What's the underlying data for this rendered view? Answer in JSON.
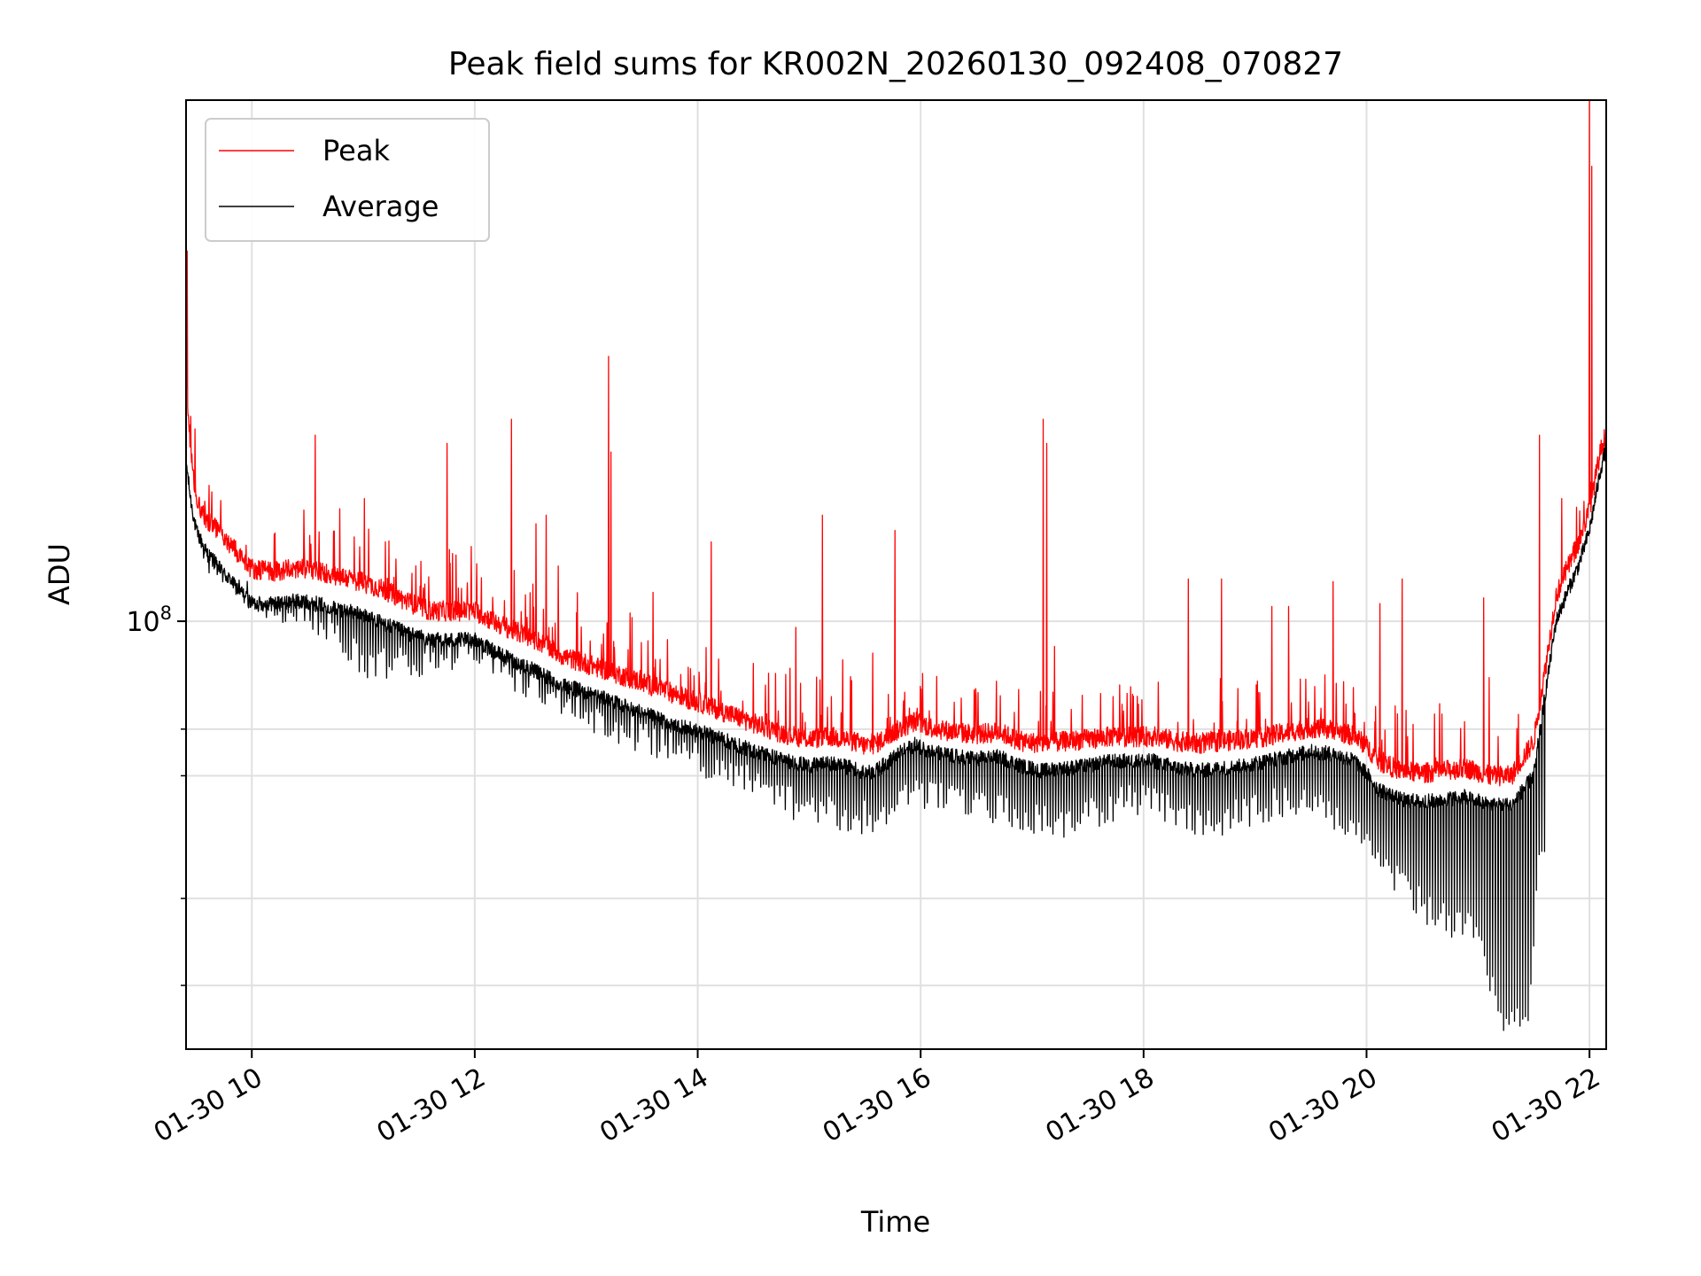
{
  "chart_data": {
    "type": "line",
    "title": "Peak field sums for KR002N_20260130_092408_070827",
    "xlabel": "Time",
    "ylabel": "ADU",
    "yscale": "log",
    "ylim": [
      24300000.0,
      560000000.0
    ],
    "xlim": [
      9.41,
      22.15
    ],
    "grid": true,
    "x_ticks": [
      {
        "value": 10,
        "label": "01-30 10"
      },
      {
        "value": 12,
        "label": "01-30 12"
      },
      {
        "value": 14,
        "label": "01-30 14"
      },
      {
        "value": 16,
        "label": "01-30 16"
      },
      {
        "value": 18,
        "label": "01-30 18"
      },
      {
        "value": 20,
        "label": "01-30 20"
      },
      {
        "value": 22,
        "label": "01-30 22"
      }
    ],
    "y_major_ticks": [
      {
        "value": 100000000.0,
        "base": "10",
        "exp": "8"
      }
    ],
    "y_minor_ticks": [
      30000000.0,
      40000000.0,
      60000000.0,
      70000000.0
    ],
    "legend": {
      "placement": "upper-left"
    },
    "series": [
      {
        "name": "Peak",
        "color": "#ff0000",
        "points": [
          [
            9.41,
            220000000.0
          ],
          [
            9.45,
            170000000.0
          ],
          [
            9.5,
            145000000.0
          ],
          [
            9.6,
            135000000.0
          ],
          [
            9.75,
            128000000.0
          ],
          [
            9.9,
            120000000.0
          ],
          [
            10.0,
            115000000.0
          ],
          [
            10.2,
            114000000.0
          ],
          [
            10.4,
            115000000.0
          ],
          [
            10.6,
            114000000.0
          ],
          [
            10.8,
            112000000.0
          ],
          [
            11.0,
            110000000.0
          ],
          [
            11.2,
            107000000.0
          ],
          [
            11.4,
            103000000.0
          ],
          [
            11.6,
            100000000.0
          ],
          [
            11.8,
            100000000.0
          ],
          [
            12.0,
            100000000.0
          ],
          [
            12.2,
            96000000.0
          ],
          [
            12.4,
            93000000.0
          ],
          [
            12.6,
            90000000.0
          ],
          [
            12.8,
            86000000.0
          ],
          [
            13.0,
            84000000.0
          ],
          [
            13.2,
            82000000.0
          ],
          [
            13.4,
            80000000.0
          ],
          [
            13.6,
            78000000.0
          ],
          [
            13.8,
            76000000.0
          ],
          [
            14.0,
            74000000.0
          ],
          [
            14.2,
            72000000.0
          ],
          [
            14.4,
            70000000.0
          ],
          [
            14.6,
            68000000.0
          ],
          [
            14.8,
            66500000.0
          ],
          [
            15.0,
            65500000.0
          ],
          [
            15.2,
            66000000.0
          ],
          [
            15.4,
            65000000.0
          ],
          [
            15.5,
            64000000.0
          ],
          [
            15.6,
            64500000.0
          ],
          [
            15.8,
            67500000.0
          ],
          [
            15.95,
            69500000.0
          ],
          [
            16.1,
            68000000.0
          ],
          [
            16.3,
            67000000.0
          ],
          [
            16.5,
            66500000.0
          ],
          [
            16.7,
            67000000.0
          ],
          [
            16.9,
            65000000.0
          ],
          [
            17.1,
            64500000.0
          ],
          [
            17.3,
            65000000.0
          ],
          [
            17.5,
            65500000.0
          ],
          [
            17.7,
            66000000.0
          ],
          [
            17.9,
            66000000.0
          ],
          [
            18.1,
            66000000.0
          ],
          [
            18.3,
            65000000.0
          ],
          [
            18.5,
            64500000.0
          ],
          [
            18.7,
            65000000.0
          ],
          [
            18.9,
            65500000.0
          ],
          [
            19.1,
            66000000.0
          ],
          [
            19.3,
            67000000.0
          ],
          [
            19.5,
            68000000.0
          ],
          [
            19.7,
            67500000.0
          ],
          [
            19.9,
            66000000.0
          ],
          [
            20.0,
            64000000.0
          ],
          [
            20.1,
            61000000.0
          ],
          [
            20.3,
            59000000.0
          ],
          [
            20.5,
            58500000.0
          ],
          [
            20.7,
            59000000.0
          ],
          [
            20.9,
            59500000.0
          ],
          [
            21.1,
            58000000.0
          ],
          [
            21.3,
            58000000.0
          ],
          [
            21.5,
            65000000.0
          ],
          [
            21.6,
            82000000.0
          ],
          [
            21.7,
            105000000.0
          ],
          [
            21.8,
            115000000.0
          ],
          [
            21.9,
            125000000.0
          ],
          [
            22.0,
            140000000.0
          ],
          [
            22.1,
            170000000.0
          ],
          [
            22.15,
            180000000.0
          ]
        ],
        "spikes": [
          [
            9.42,
            340000000.0
          ],
          [
            10.57,
            185000000.0
          ],
          [
            10.79,
            145000000.0
          ],
          [
            11.01,
            150000000.0
          ],
          [
            11.2,
            130000000.0
          ],
          [
            11.75,
            180000000.0
          ],
          [
            11.97,
            128000000.0
          ],
          [
            12.33,
            195000000.0
          ],
          [
            12.55,
            138000000.0
          ],
          [
            12.64,
            142000000.0
          ],
          [
            12.75,
            120000000.0
          ],
          [
            13.2,
            240000000.0
          ],
          [
            13.22,
            175000000.0
          ],
          [
            13.6,
            110000000.0
          ],
          [
            14.12,
            130000000.0
          ],
          [
            14.5,
            87000000.0
          ],
          [
            14.88,
            98000000.0
          ],
          [
            15.12,
            142000000.0
          ],
          [
            15.3,
            88000000.0
          ],
          [
            15.57,
            90000000.0
          ],
          [
            15.77,
            135000000.0
          ],
          [
            16.68,
            82000000.0
          ],
          [
            17.1,
            195000000.0
          ],
          [
            17.13,
            180000000.0
          ],
          [
            17.2,
            92000000.0
          ],
          [
            18.4,
            115000000.0
          ],
          [
            18.7,
            115000000.0
          ],
          [
            19.15,
            105000000.0
          ],
          [
            19.3,
            105000000.0
          ],
          [
            19.7,
            114000000.0
          ],
          [
            20.12,
            106000000.0
          ],
          [
            20.32,
            115000000.0
          ],
          [
            21.05,
            108000000.0
          ],
          [
            21.1,
            83000000.0
          ],
          [
            21.55,
            185000000.0
          ],
          [
            21.75,
            150000000.0
          ],
          [
            22.0,
            560000000.0
          ],
          [
            22.02,
            450000000.0
          ]
        ]
      },
      {
        "name": "Average",
        "color": "#000000",
        "points": [
          [
            9.41,
            170000000.0
          ],
          [
            9.45,
            150000000.0
          ],
          [
            9.5,
            135000000.0
          ],
          [
            9.6,
            125000000.0
          ],
          [
            9.75,
            117000000.0
          ],
          [
            9.9,
            110000000.0
          ],
          [
            10.0,
            106000000.0
          ],
          [
            10.2,
            106000000.0
          ],
          [
            10.4,
            107000000.0
          ],
          [
            10.6,
            106000000.0
          ],
          [
            10.8,
            104000000.0
          ],
          [
            11.0,
            102000000.0
          ],
          [
            11.2,
            99000000.0
          ],
          [
            11.4,
            96000000.0
          ],
          [
            11.6,
            94000000.0
          ],
          [
            11.8,
            94000000.0
          ],
          [
            12.0,
            94000000.0
          ],
          [
            12.2,
            90000000.0
          ],
          [
            12.4,
            87000000.0
          ],
          [
            12.6,
            84000000.0
          ],
          [
            12.8,
            81000000.0
          ],
          [
            13.0,
            79000000.0
          ],
          [
            13.2,
            77000000.0
          ],
          [
            13.4,
            75000000.0
          ],
          [
            13.6,
            73000000.0
          ],
          [
            13.8,
            71000000.0
          ],
          [
            14.0,
            69500000.0
          ],
          [
            14.2,
            68000000.0
          ],
          [
            14.4,
            66000000.0
          ],
          [
            14.6,
            64500000.0
          ],
          [
            14.8,
            63000000.0
          ],
          [
            15.0,
            62000000.0
          ],
          [
            15.2,
            62500000.0
          ],
          [
            15.4,
            61500000.0
          ],
          [
            15.5,
            60500000.0
          ],
          [
            15.6,
            61000000.0
          ],
          [
            15.8,
            64500000.0
          ],
          [
            15.95,
            66500000.0
          ],
          [
            16.1,
            65000000.0
          ],
          [
            16.3,
            64000000.0
          ],
          [
            16.5,
            63500000.0
          ],
          [
            16.7,
            64000000.0
          ],
          [
            16.9,
            62000000.0
          ],
          [
            17.1,
            61000000.0
          ],
          [
            17.3,
            61500000.0
          ],
          [
            17.5,
            62000000.0
          ],
          [
            17.7,
            63000000.0
          ],
          [
            17.9,
            63000000.0
          ],
          [
            18.1,
            63000000.0
          ],
          [
            18.3,
            61500000.0
          ],
          [
            18.5,
            61000000.0
          ],
          [
            18.7,
            61500000.0
          ],
          [
            18.9,
            62000000.0
          ],
          [
            19.1,
            63000000.0
          ],
          [
            19.3,
            64000000.0
          ],
          [
            19.5,
            65000000.0
          ],
          [
            19.7,
            64500000.0
          ],
          [
            19.9,
            63000000.0
          ],
          [
            20.0,
            60500000.0
          ],
          [
            20.1,
            57500000.0
          ],
          [
            20.3,
            55500000.0
          ],
          [
            20.5,
            55000000.0
          ],
          [
            20.7,
            55500000.0
          ],
          [
            20.9,
            56000000.0
          ],
          [
            21.1,
            54500000.0
          ],
          [
            21.3,
            54500000.0
          ],
          [
            21.5,
            60000000.0
          ],
          [
            21.6,
            78000000.0
          ],
          [
            21.7,
            100000000.0
          ],
          [
            21.8,
            110000000.0
          ],
          [
            21.9,
            120000000.0
          ],
          [
            22.0,
            135000000.0
          ],
          [
            22.1,
            165000000.0
          ],
          [
            22.15,
            178000000.0
          ]
        ],
        "dips": [
          [
            9.5,
            120000000.0
          ],
          [
            10.2,
            99000000.0
          ],
          [
            10.58,
            96000000.0
          ],
          [
            11.02,
            82000000.0
          ],
          [
            11.75,
            83000000.0
          ],
          [
            12.0,
            88000000.0
          ],
          [
            12.35,
            79000000.0
          ],
          [
            12.65,
            73000000.0
          ],
          [
            13.0,
            69500000.0
          ],
          [
            13.5,
            64500000.0
          ],
          [
            14.0,
            60000000.0
          ],
          [
            14.5,
            55500000.0
          ],
          [
            14.95,
            51000000.0
          ],
          [
            15.35,
            49500000.0
          ],
          [
            15.6,
            49500000.0
          ],
          [
            16.0,
            54000000.0
          ],
          [
            16.5,
            51000000.0
          ],
          [
            17.0,
            49500000.0
          ],
          [
            17.2,
            48500000.0
          ],
          [
            17.5,
            50000000.0
          ],
          [
            18.0,
            53000000.0
          ],
          [
            18.35,
            49500000.0
          ],
          [
            18.65,
            49000000.0
          ],
          [
            19.0,
            51000000.0
          ],
          [
            19.5,
            53000000.0
          ],
          [
            20.0,
            45000000.0
          ],
          [
            20.3,
            39500000.0
          ],
          [
            20.6,
            36000000.0
          ],
          [
            20.9,
            34500000.0
          ],
          [
            21.0,
            32500000.0
          ],
          [
            21.25,
            25000000.0
          ],
          [
            21.37,
            25500000.0
          ],
          [
            21.45,
            25500000.0
          ],
          [
            21.55,
            43000000.0
          ]
        ]
      }
    ]
  }
}
